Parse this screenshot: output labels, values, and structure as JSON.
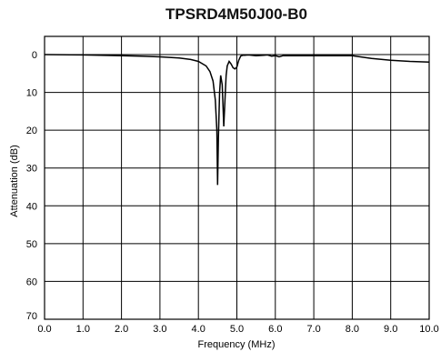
{
  "chart_data": {
    "type": "line",
    "title": "TPSRD4M50J00-B0",
    "xlabel": "Frequency (MHz)",
    "ylabel": "Attenuation (dB)",
    "xlim": [
      0,
      10
    ],
    "ylim": [
      0,
      70
    ],
    "y_inverted": true,
    "grid": true,
    "x_ticks": [
      "0.0",
      "1.0",
      "2.0",
      "3.0",
      "4.0",
      "5.0",
      "6.0",
      "7.0",
      "8.0",
      "9.0",
      "10.0"
    ],
    "y_ticks": [
      "0",
      "10",
      "20",
      "30",
      "40",
      "50",
      "60",
      "70"
    ],
    "series": [
      {
        "x": [
          0,
          1,
          2,
          2.5,
          3,
          3.5,
          3.8,
          4.0,
          4.2,
          4.3,
          4.38,
          4.44,
          4.48,
          4.5,
          4.52,
          4.55,
          4.58,
          4.62,
          4.66,
          4.7,
          4.72,
          4.75,
          4.8,
          4.85,
          4.9,
          4.95,
          5.0,
          5.05,
          5.1,
          5.15,
          5.2,
          5.3,
          5.5,
          5.7,
          5.8,
          5.9,
          6.0,
          6.1,
          6.2,
          6.4,
          7.0,
          7.5,
          8.0,
          8.5,
          9.0,
          9.5,
          10.0
        ],
        "y": [
          0,
          0.1,
          0.3,
          0.4,
          0.6,
          0.9,
          1.3,
          1.8,
          3.0,
          4.5,
          7.0,
          12.0,
          20.0,
          34.5,
          22.0,
          10.0,
          5.5,
          8.0,
          19.0,
          10.0,
          5.5,
          3.0,
          1.8,
          2.5,
          3.5,
          3.8,
          3.3,
          1.5,
          0.4,
          0.2,
          0.2,
          0.1,
          0.3,
          0.2,
          0.1,
          0.4,
          0.3,
          0.6,
          0.3,
          0.3,
          0.3,
          0.3,
          0.3,
          1.0,
          1.5,
          1.8,
          2.0
        ]
      }
    ]
  }
}
